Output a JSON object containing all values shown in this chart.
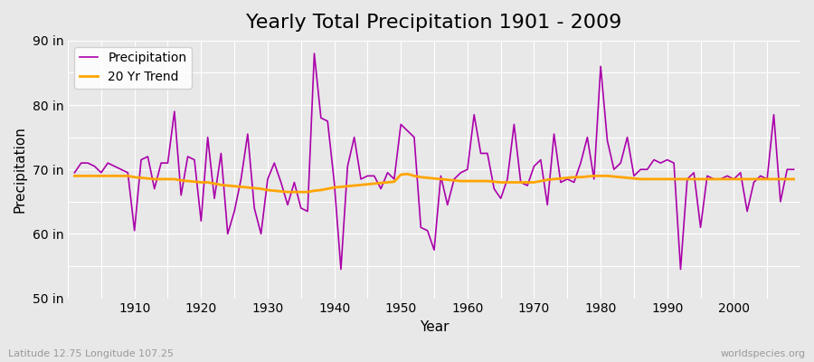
{
  "title": "Yearly Total Precipitation 1901 - 2009",
  "xlabel": "Year",
  "ylabel": "Precipitation",
  "subtitle_left": "Latitude 12.75 Longitude 107.25",
  "subtitle_right": "worldspecies.org",
  "years": [
    1901,
    1902,
    1903,
    1904,
    1905,
    1906,
    1907,
    1908,
    1909,
    1910,
    1911,
    1912,
    1913,
    1914,
    1915,
    1916,
    1917,
    1918,
    1919,
    1920,
    1921,
    1922,
    1923,
    1924,
    1925,
    1926,
    1927,
    1928,
    1929,
    1930,
    1931,
    1932,
    1933,
    1934,
    1935,
    1936,
    1937,
    1938,
    1939,
    1940,
    1941,
    1942,
    1943,
    1944,
    1945,
    1946,
    1947,
    1948,
    1949,
    1950,
    1951,
    1952,
    1953,
    1954,
    1955,
    1956,
    1957,
    1958,
    1959,
    1960,
    1961,
    1962,
    1963,
    1964,
    1965,
    1966,
    1967,
    1968,
    1969,
    1970,
    1971,
    1972,
    1973,
    1974,
    1975,
    1976,
    1977,
    1978,
    1979,
    1980,
    1981,
    1982,
    1983,
    1984,
    1985,
    1986,
    1987,
    1988,
    1989,
    1990,
    1991,
    1992,
    1993,
    1994,
    1995,
    1996,
    1997,
    1998,
    1999,
    2000,
    2001,
    2002,
    2003,
    2004,
    2005,
    2006,
    2007,
    2008,
    2009
  ],
  "precipitation": [
    69.5,
    71.0,
    71.0,
    70.5,
    69.5,
    71.0,
    70.5,
    70.0,
    69.5,
    60.5,
    71.5,
    72.0,
    67.0,
    71.0,
    71.0,
    79.0,
    66.0,
    72.0,
    71.5,
    62.0,
    75.0,
    65.5,
    72.5,
    60.0,
    63.5,
    68.5,
    75.5,
    64.0,
    60.0,
    68.5,
    71.0,
    68.0,
    64.5,
    68.0,
    64.0,
    63.5,
    88.0,
    78.0,
    77.5,
    68.0,
    54.5,
    70.5,
    75.0,
    68.5,
    69.0,
    69.0,
    67.0,
    69.5,
    68.5,
    77.0,
    76.0,
    75.0,
    61.0,
    60.5,
    57.5,
    69.0,
    64.5,
    68.5,
    69.5,
    70.0,
    78.5,
    72.5,
    72.5,
    67.0,
    65.5,
    68.5,
    77.0,
    68.0,
    67.5,
    70.5,
    71.5,
    64.5,
    75.5,
    68.0,
    68.5,
    68.0,
    71.0,
    75.0,
    68.5,
    86.0,
    74.5,
    70.0,
    71.0,
    75.0,
    69.0,
    70.0,
    70.0,
    71.5,
    71.0,
    71.5,
    71.0,
    54.5,
    68.5,
    69.5,
    61.0,
    69.0,
    68.5,
    68.5,
    69.0,
    68.5,
    69.5,
    63.5,
    68.0,
    69.0,
    68.5,
    78.5,
    65.0,
    70.0,
    70.0
  ],
  "trend": [
    69.0,
    69.0,
    69.0,
    69.0,
    69.0,
    69.0,
    69.0,
    69.0,
    69.0,
    68.8,
    68.7,
    68.6,
    68.5,
    68.5,
    68.5,
    68.5,
    68.3,
    68.2,
    68.1,
    68.0,
    68.0,
    67.8,
    67.6,
    67.5,
    67.4,
    67.3,
    67.2,
    67.1,
    67.0,
    66.8,
    66.7,
    66.6,
    66.5,
    66.5,
    66.5,
    66.5,
    66.7,
    66.8,
    67.0,
    67.2,
    67.3,
    67.4,
    67.5,
    67.6,
    67.7,
    67.8,
    67.9,
    68.0,
    68.1,
    69.2,
    69.3,
    69.0,
    68.8,
    68.7,
    68.6,
    68.5,
    68.4,
    68.3,
    68.2,
    68.2,
    68.2,
    68.2,
    68.2,
    68.1,
    68.0,
    68.0,
    68.0,
    68.0,
    68.0,
    68.0,
    68.2,
    68.4,
    68.5,
    68.6,
    68.7,
    68.8,
    68.8,
    68.9,
    69.0,
    69.0,
    69.0,
    68.9,
    68.8,
    68.7,
    68.6,
    68.5,
    68.5,
    68.5,
    68.5,
    68.5,
    68.5,
    68.5,
    68.5,
    68.5,
    68.5,
    68.5,
    68.5,
    68.5,
    68.5,
    68.5,
    68.5,
    68.5,
    68.5,
    68.5,
    68.5,
    68.5,
    68.5,
    68.5,
    68.5
  ],
  "ylim": [
    50,
    90
  ],
  "yticks": [
    50,
    60,
    70,
    80,
    90
  ],
  "ytick_labels": [
    "50 in",
    "60 in",
    "70 in",
    "80 in",
    "90 in"
  ],
  "xticks": [
    1910,
    1920,
    1930,
    1940,
    1950,
    1960,
    1970,
    1980,
    1990,
    2000
  ],
  "precip_color": "#aa00aa",
  "trend_color": "#ffa500",
  "bg_color": "#e8e8e8",
  "plot_bg_color": "#e8e8e8",
  "grid_color": "#ffffff",
  "title_fontsize": 16,
  "label_fontsize": 11,
  "tick_fontsize": 10,
  "legend_fontsize": 10
}
